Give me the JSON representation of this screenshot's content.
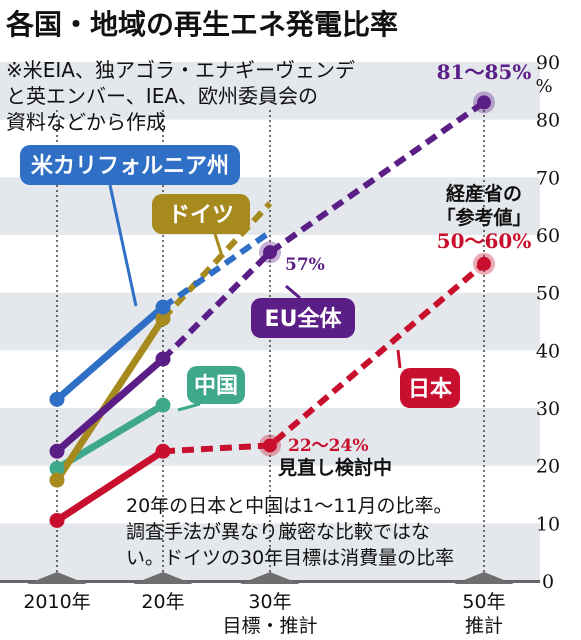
{
  "title": "各国・地域の再生エネ発電比率",
  "source_note": [
    "※米EIA、独アゴラ・エナギーヴェンデ",
    "と英エンバー、IEA、欧州委員会の",
    "資料などから作成"
  ],
  "colors": {
    "california": "#2f6fc6",
    "germany": "#a68a1d",
    "eu": "#5b1d86",
    "china": "#3fa88a",
    "japan": "#c8102e",
    "band": "#e4e8ec"
  },
  "chart_data": {
    "type": "line",
    "x_categories": [
      "2010年",
      "20年",
      "30年",
      "50年"
    ],
    "x_sublabels": [
      "",
      "",
      "目標・推計",
      "推計"
    ],
    "y_axis": {
      "min": 0,
      "max": 90,
      "ticks": [
        0,
        10,
        20,
        30,
        40,
        50,
        60,
        70,
        80,
        90
      ],
      "unit": "%"
    },
    "series": [
      {
        "name": "米カリフォルニア州",
        "color_key": "california",
        "points": [
          {
            "x": 2010,
            "y": 31.5
          },
          {
            "x": 2020,
            "y": 47.5
          }
        ],
        "projection": [
          {
            "x": 2020,
            "y": 47.5
          },
          {
            "x": 2030,
            "y": 60.5
          }
        ]
      },
      {
        "name": "ドイツ",
        "color_key": "germany",
        "points": [
          {
            "x": 2010,
            "y": 17.5
          },
          {
            "x": 2020,
            "y": 45.5
          }
        ],
        "projection": [
          {
            "x": 2020,
            "y": 45.5
          },
          {
            "x": 2030,
            "y": 65.5
          }
        ]
      },
      {
        "name": "EU全体",
        "color_key": "eu",
        "points": [
          {
            "x": 2010,
            "y": 22.5
          },
          {
            "x": 2020,
            "y": 38.5
          }
        ],
        "projection": [
          {
            "x": 2020,
            "y": 38.5
          },
          {
            "x": 2030,
            "y": 57
          },
          {
            "x": 2050,
            "y": 83
          }
        ]
      },
      {
        "name": "中国",
        "color_key": "china",
        "points": [
          {
            "x": 2010,
            "y": 19.5
          },
          {
            "x": 2020,
            "y": 30.5
          }
        ],
        "projection": []
      },
      {
        "name": "日本",
        "color_key": "japan",
        "points": [
          {
            "x": 2010,
            "y": 10.5
          },
          {
            "x": 2020,
            "y": 22.5
          }
        ],
        "projection": [
          {
            "x": 2020,
            "y": 22.5
          },
          {
            "x": 2030,
            "y": 23.5
          },
          {
            "x": 2050,
            "y": 55
          }
        ]
      }
    ],
    "annotations": {
      "eu_2030": "57%",
      "eu_2050": "81〜85%",
      "japan_2030": "22〜24%",
      "japan_2030_note": "見直し検討中",
      "japan_2050_header": [
        "経産省の",
        "「参考値」"
      ],
      "japan_2050": "50〜60%"
    },
    "footnote": [
      "20年の日本と中国は1〜11月の比率。",
      "調査手法が異なり厳密な比較ではな",
      "い。ドイツの30年目標は消費量の比率"
    ]
  }
}
